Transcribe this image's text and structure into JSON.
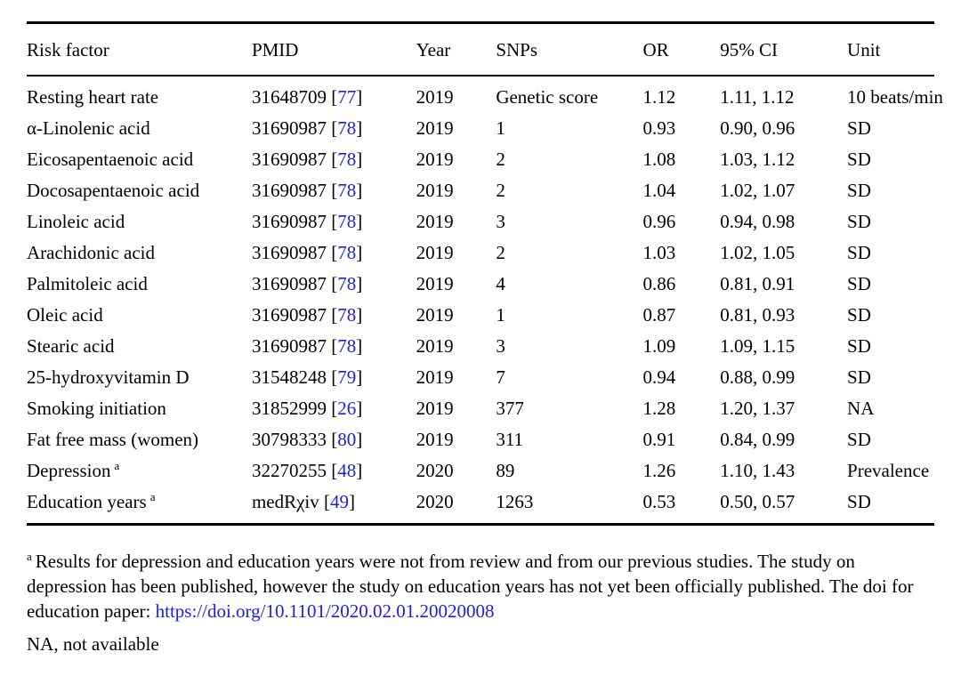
{
  "table": {
    "headers": {
      "risk_factor": "Risk factor",
      "pmid": "PMID",
      "year": "Year",
      "snps": "SNPs",
      "or": "OR",
      "ci": "95% CI",
      "unit": "Unit"
    },
    "rows": [
      {
        "name": "Resting heart rate",
        "sup": "",
        "pmid_open": "31648709 [",
        "ref": "77",
        "ref_close": "]",
        "year": "2019",
        "snps": "Genetic score",
        "or": "1.12",
        "ci": "1.11, 1.12",
        "unit": "10 beats/min"
      },
      {
        "name": "α-Linolenic acid",
        "sup": "",
        "pmid_open": "31690987 [",
        "ref": "78",
        "ref_close": "]",
        "year": "2019",
        "snps": "1",
        "or": "0.93",
        "ci": "0.90, 0.96",
        "unit": "SD"
      },
      {
        "name": "Eicosapentaenoic acid",
        "sup": "",
        "pmid_open": "31690987 [",
        "ref": "78",
        "ref_close": "]",
        "year": "2019",
        "snps": "2",
        "or": "1.08",
        "ci": "1.03, 1.12",
        "unit": "SD"
      },
      {
        "name": "Docosapentaenoic acid",
        "sup": "",
        "pmid_open": "31690987 [",
        "ref": "78",
        "ref_close": "]",
        "year": "2019",
        "snps": "2",
        "or": "1.04",
        "ci": "1.02, 1.07",
        "unit": "SD"
      },
      {
        "name": "Linoleic acid",
        "sup": "",
        "pmid_open": "31690987 [",
        "ref": "78",
        "ref_close": "]",
        "year": "2019",
        "snps": "3",
        "or": "0.96",
        "ci": "0.94, 0.98",
        "unit": "SD"
      },
      {
        "name": "Arachidonic acid",
        "sup": "",
        "pmid_open": "31690987 [",
        "ref": "78",
        "ref_close": "]",
        "year": "2019",
        "snps": "2",
        "or": "1.03",
        "ci": "1.02, 1.05",
        "unit": "SD"
      },
      {
        "name": "Palmitoleic acid",
        "sup": "",
        "pmid_open": "31690987 [",
        "ref": "78",
        "ref_close": "]",
        "year": "2019",
        "snps": "4",
        "or": "0.86",
        "ci": "0.81, 0.91",
        "unit": "SD"
      },
      {
        "name": "Oleic acid",
        "sup": "",
        "pmid_open": "31690987 [",
        "ref": "78",
        "ref_close": "]",
        "year": "2019",
        "snps": "1",
        "or": "0.87",
        "ci": "0.81, 0.93",
        "unit": "SD"
      },
      {
        "name": "Stearic acid",
        "sup": "",
        "pmid_open": "31690987 [",
        "ref": "78",
        "ref_close": "]",
        "year": "2019",
        "snps": "3",
        "or": "1.09",
        "ci": "1.09, 1.15",
        "unit": "SD"
      },
      {
        "name": "25-hydroxyvitamin D",
        "sup": "",
        "pmid_open": "31548248 [",
        "ref": "79",
        "ref_close": "]",
        "year": "2019",
        "snps": "7",
        "or": "0.94",
        "ci": "0.88, 0.99",
        "unit": "SD"
      },
      {
        "name": "Smoking initiation",
        "sup": "",
        "pmid_open": "31852999 [",
        "ref": "26",
        "ref_close": "]",
        "year": "2019",
        "snps": "377",
        "or": "1.28",
        "ci": "1.20, 1.37",
        "unit": "NA"
      },
      {
        "name": "Fat free mass (women)",
        "sup": "",
        "pmid_open": "30798333 [",
        "ref": "80",
        "ref_close": "]",
        "year": "2019",
        "snps": "311",
        "or": "0.91",
        "ci": "0.84, 0.99",
        "unit": "SD"
      },
      {
        "name": "Depression",
        "sup": "a",
        "pmid_open": "32270255 [",
        "ref": "48",
        "ref_close": "]",
        "year": "2020",
        "snps": "89",
        "or": "1.26",
        "ci": "1.10, 1.43",
        "unit": "Prevalence"
      },
      {
        "name": "Education years",
        "sup": "a",
        "pmid_open": "medRχiv [",
        "ref": "49",
        "ref_close": "]",
        "year": "2020",
        "snps": "1263",
        "or": "0.53",
        "ci": "0.50, 0.57",
        "unit": "SD"
      }
    ]
  },
  "footnote": {
    "marker": "a",
    "text": "Results for depression and education years were not from review and from our previous studies. The study on depression has been published, however the study on education years has not yet been officially published. The doi for education paper: ",
    "link": "https://doi.org/10.1101/2020.02.01.20020008",
    "na_note": "NA, not available"
  },
  "colors": {
    "text": "#000000",
    "background": "#ffffff",
    "link_blue": "#1e1edc",
    "rule": "#000000"
  }
}
